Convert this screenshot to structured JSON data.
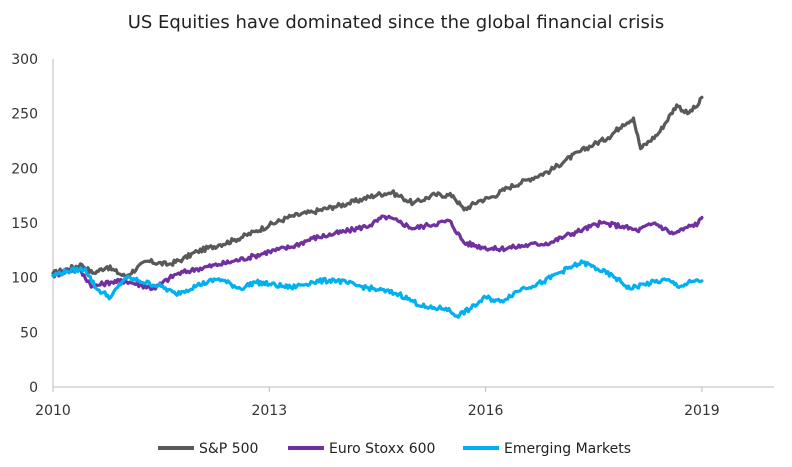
{
  "chart_data": {
    "type": "line",
    "title": "US Equities have dominated since the global financial crisis",
    "xlabel": "",
    "ylabel": "",
    "xlim": [
      2010,
      2020
    ],
    "ylim": [
      0,
      300
    ],
    "x_ticks": [
      "2010",
      "2013",
      "2016",
      "2019"
    ],
    "y_ticks": [
      "0",
      "50",
      "100",
      "150",
      "200",
      "250",
      "300"
    ],
    "grid": false,
    "legend_position": "bottom",
    "series": [
      {
        "name": "S&P 500",
        "color": "#595959",
        "x": [
          2010.0,
          2010.2,
          2010.4,
          2010.55,
          2010.75,
          2011.0,
          2011.3,
          2011.6,
          2011.8,
          2012.0,
          2012.3,
          2012.5,
          2012.8,
          2013.0,
          2013.3,
          2013.6,
          2013.9,
          2014.1,
          2014.3,
          2014.5,
          2014.7,
          2014.85,
          2015.0,
          2015.3,
          2015.55,
          2015.7,
          2015.9,
          2016.1,
          2016.3,
          2016.6,
          2016.9,
          2017.1,
          2017.3,
          2017.5,
          2017.7,
          2017.9,
          2018.05,
          2018.15,
          2018.4,
          2018.65,
          2018.8,
          2018.95,
          2019.0
        ],
        "y": [
          104,
          108,
          112,
          104,
          110,
          101,
          115,
          112,
          117,
          124,
          130,
          134,
          142,
          148,
          156,
          160,
          165,
          168,
          172,
          176,
          178,
          173,
          168,
          176,
          175,
          162,
          170,
          174,
          182,
          190,
          198,
          207,
          215,
          222,
          228,
          240,
          246,
          218,
          232,
          258,
          250,
          258,
          265
        ]
      },
      {
        "name": "Euro Stoxx 600",
        "color": "#7030A0",
        "x": [
          2010.0,
          2010.2,
          2010.35,
          2010.55,
          2010.8,
          2011.0,
          2011.4,
          2011.7,
          2012.0,
          2012.3,
          2012.5,
          2012.8,
          2013.0,
          2013.3,
          2013.6,
          2013.9,
          2014.1,
          2014.4,
          2014.6,
          2014.8,
          2015.0,
          2015.2,
          2015.5,
          2015.7,
          2015.95,
          2016.15,
          2016.4,
          2016.6,
          2016.9,
          2017.1,
          2017.35,
          2017.6,
          2017.9,
          2018.1,
          2018.35,
          2018.6,
          2018.8,
          2018.95,
          2019.0
        ],
        "y": [
          102,
          106,
          108,
          92,
          96,
          97,
          90,
          103,
          108,
          112,
          115,
          120,
          124,
          128,
          136,
          140,
          143,
          148,
          156,
          151,
          145,
          148,
          152,
          132,
          128,
          126,
          128,
          130,
          132,
          138,
          144,
          150,
          147,
          143,
          150,
          140,
          146,
          150,
          155
        ]
      },
      {
        "name": "Emerging Markets",
        "color": "#00B0F0",
        "x": [
          2010.0,
          2010.2,
          2010.45,
          2010.6,
          2010.8,
          2011.0,
          2011.2,
          2011.5,
          2011.7,
          2012.0,
          2012.3,
          2012.6,
          2012.8,
          2013.0,
          2013.3,
          2013.6,
          2013.9,
          2014.2,
          2014.5,
          2014.8,
          2015.0,
          2015.2,
          2015.45,
          2015.6,
          2015.8,
          2016.0,
          2016.2,
          2016.5,
          2016.8,
          2017.0,
          2017.2,
          2017.35,
          2017.55,
          2017.8,
          2018.0,
          2018.2,
          2018.5,
          2018.7,
          2018.85,
          2019.0
        ],
        "y": [
          102,
          106,
          108,
          90,
          82,
          100,
          97,
          92,
          85,
          93,
          99,
          90,
          96,
          94,
          91,
          96,
          98,
          93,
          89,
          85,
          78,
          72,
          72,
          65,
          72,
          82,
          78,
          90,
          96,
          104,
          110,
          114,
          108,
          100,
          90,
          94,
          98,
          92,
          96,
          97
        ]
      }
    ]
  }
}
